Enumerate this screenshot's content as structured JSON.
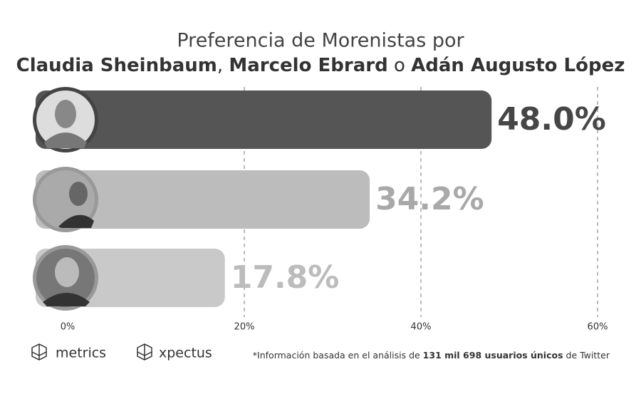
{
  "chart_data": {
    "type": "bar",
    "orientation": "horizontal",
    "title": "Preferencia de Morenistas por",
    "subtitle_parts": [
      {
        "text": "Claudia Sheinbaum",
        "bold": true
      },
      {
        "text": ", ",
        "bold": false
      },
      {
        "text": "Marcelo Ebrard",
        "bold": true
      },
      {
        "text": " o ",
        "bold": false
      },
      {
        "text": "Adán Augusto López",
        "bold": true
      }
    ],
    "categories": [
      null,
      null,
      null
    ],
    "values": [
      48.0,
      34.2,
      17.8
    ],
    "value_labels": [
      "48.0%",
      "34.2%",
      "17.8%"
    ],
    "colors": [
      "#555555",
      "#bcbcbc",
      "#c9c9c9"
    ],
    "label_colors": [
      "#464646",
      "#a9a9a9",
      "#bcbcbc"
    ],
    "xlim": [
      0,
      60
    ],
    "xticks": [
      {
        "value": 0,
        "label": "0%"
      },
      {
        "value": 20,
        "label": "20%"
      },
      {
        "value": 40,
        "label": "40%"
      },
      {
        "value": 60,
        "label": "60%"
      }
    ],
    "grid": true
  },
  "footer": {
    "logos": [
      "metrics",
      "xpectus"
    ],
    "note_parts": [
      {
        "text": "*Información basada en el análisis de ",
        "bold": false
      },
      {
        "text": "131 mil 698 usuarios únicos",
        "bold": true
      },
      {
        "text": " de Twitter",
        "bold": false
      }
    ]
  }
}
